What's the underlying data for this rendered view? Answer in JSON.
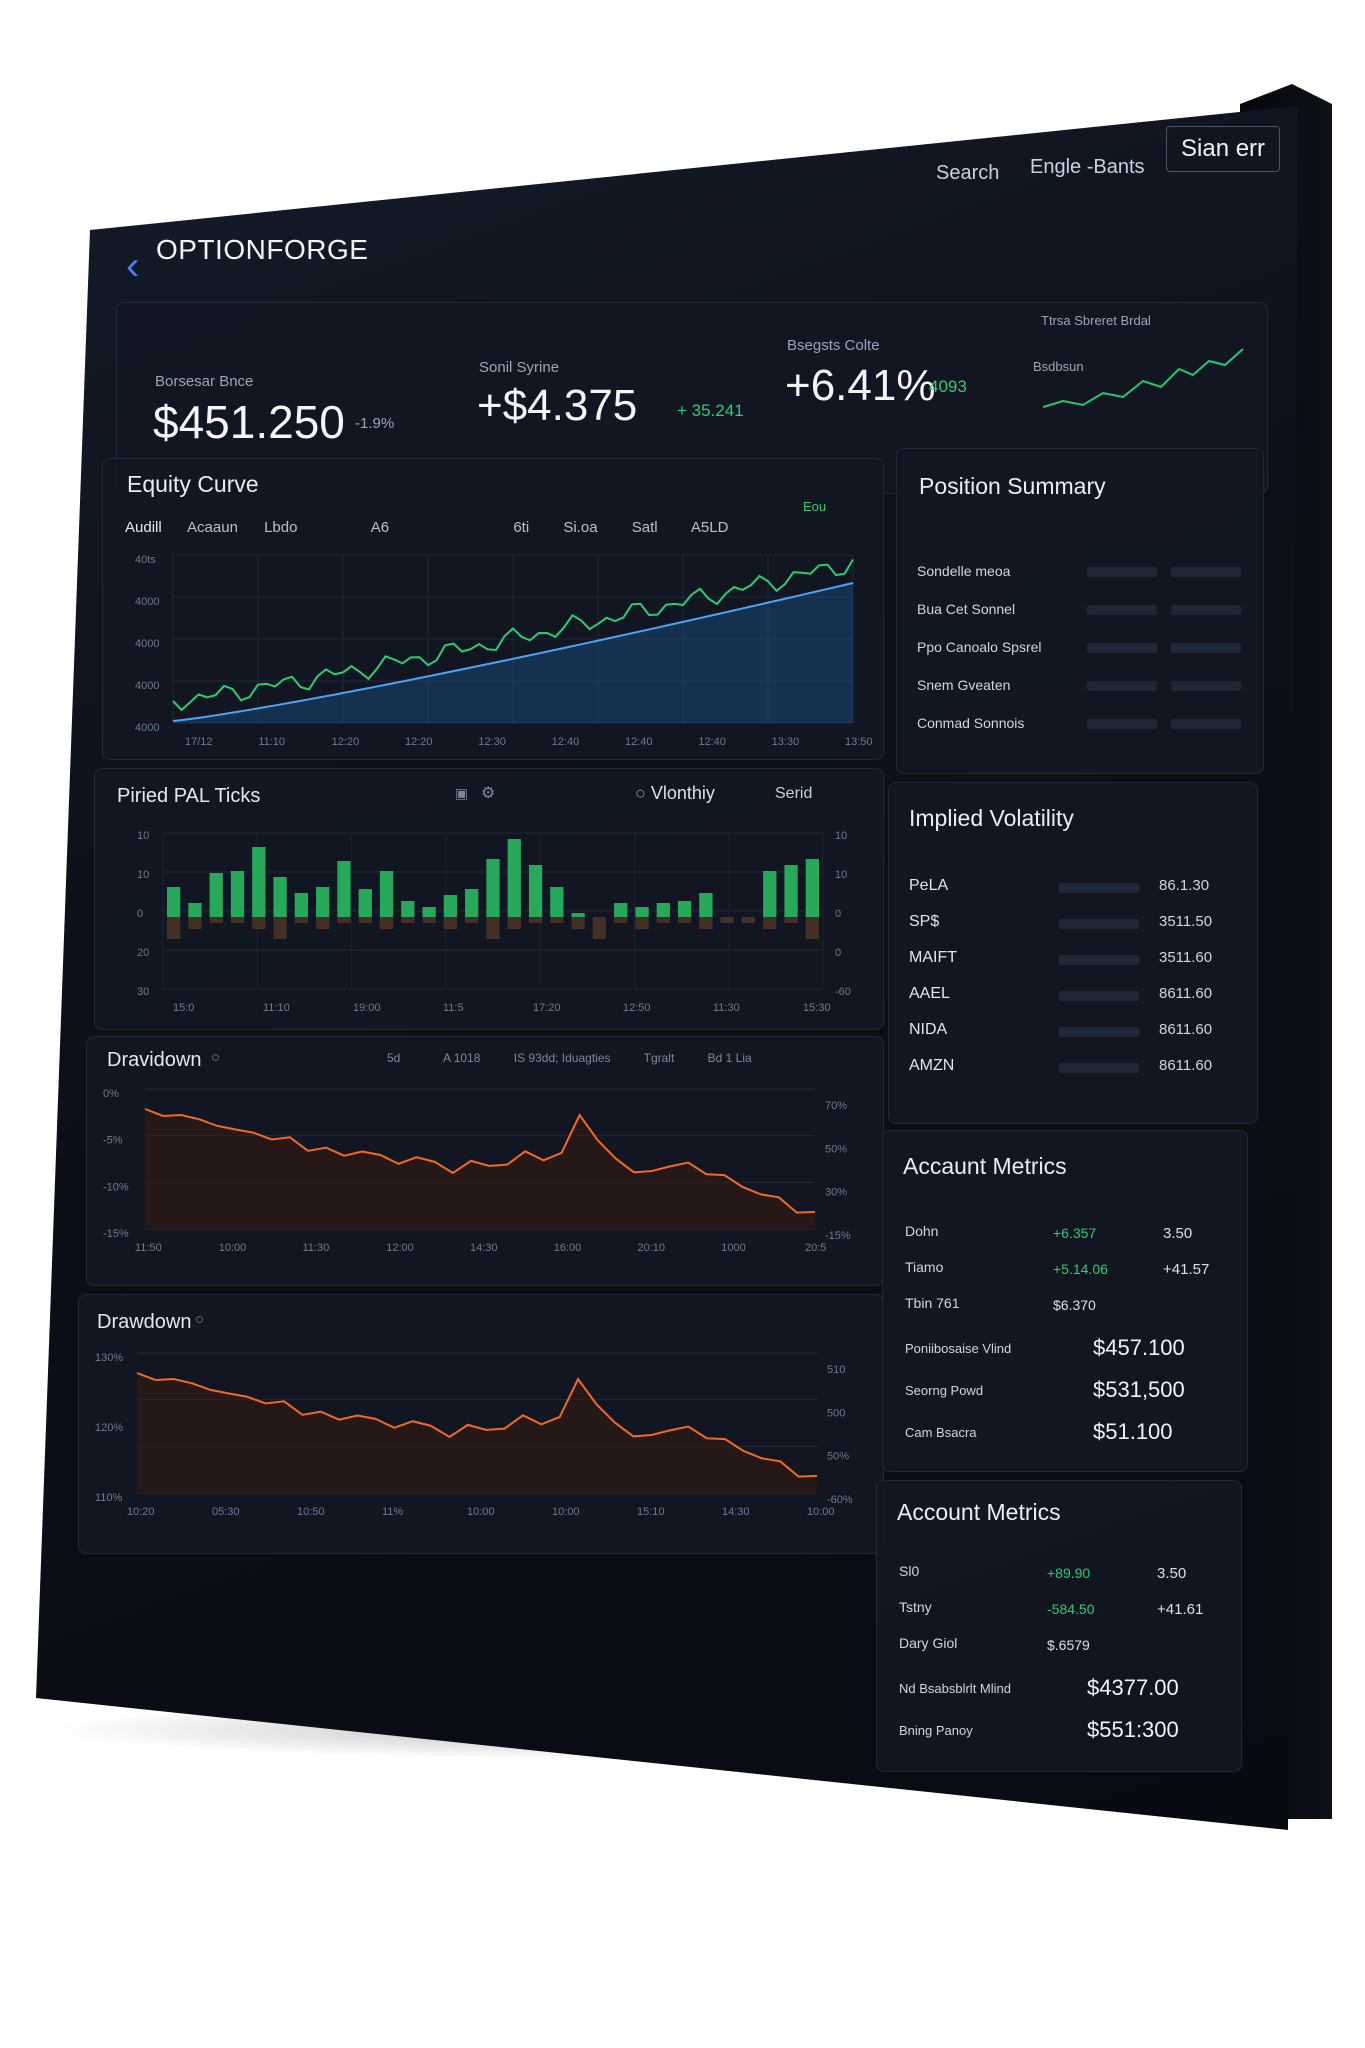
{
  "app": {
    "name": "OPTIONFORGE",
    "nav": {
      "search": "Search",
      "middle": "Engle -Bants",
      "signin": "Sian err"
    }
  },
  "stats": [
    {
      "label": "Borsesar Bnce",
      "value": "$451.250",
      "delta": "-1.9%"
    },
    {
      "label": "Sonil Syrine",
      "value": "+$4.375",
      "delta": "+ 35.241"
    },
    {
      "label": "Bsegsts Colte",
      "value": "+6.41%",
      "delta": "4093"
    },
    {
      "label": "Ttrsa Sbreret Brdal",
      "sub": "Bsdbsun"
    }
  ],
  "equity": {
    "title": "Equity Curve",
    "tabs": [
      "Audill",
      "Acaaun",
      "Lbdo",
      "A6",
      "6ti",
      "Si.oa",
      "Satl",
      "A5LD"
    ],
    "legend": "Eou",
    "y_ticks": [
      "40ts",
      "4000",
      "4000",
      "4000",
      "4000"
    ],
    "x_ticks": [
      "17/12",
      "11:10",
      "12:20",
      "12:20",
      "12:30",
      "12:40",
      "12:40",
      "12:40",
      "13:30",
      "13:50"
    ]
  },
  "pnl": {
    "title": "Piried PAL Ticks",
    "toggle": "Vlonthiy",
    "extra": "Serid",
    "y_left": [
      "10",
      "10",
      "0",
      "20",
      "30"
    ],
    "y_right": [
      "10",
      "10",
      "0",
      "0",
      "-60"
    ],
    "x_ticks": [
      "15:0",
      "11:10",
      "19:00",
      "11:5",
      "17:20",
      "12:50",
      "11:30",
      "15:30"
    ]
  },
  "drawdown1": {
    "title": "Dravidown",
    "header": [
      "5d",
      "A 1018",
      "IS 93dd; Iduagties",
      "Tgralt",
      "Bd 1 Lia"
    ],
    "y_left": [
      "0%",
      "-5%",
      "-10%",
      "-15%"
    ],
    "y_right": [
      "70%",
      "50%",
      "30%",
      "-15%"
    ],
    "x_ticks": [
      "11:50",
      "10:00",
      "11:30",
      "12:00",
      "14:30",
      "16:00",
      "20:10",
      "1000",
      "20:5"
    ]
  },
  "drawdown2": {
    "title": "Drawdown",
    "y_left": [
      "130%",
      "120%",
      "110%"
    ],
    "y_right": [
      "510",
      "500",
      "50%",
      "-60%"
    ],
    "x_ticks": [
      "10:20",
      "05:30",
      "10:50",
      "11%",
      "10:00",
      "10:00",
      "15:10",
      "14:30",
      "10:00"
    ]
  },
  "position_summary": {
    "title": "Position Summary",
    "rows": [
      "Sondelle meoa",
      "Bua Cet Sonnel",
      "Ppo Canoalo Spsrel",
      "Snem Gveaten",
      "Conmad Sonnois"
    ]
  },
  "implied_vol": {
    "title": "Implied Volatility",
    "rows": [
      {
        "ticker": "PeLA",
        "value": "86.1.30"
      },
      {
        "ticker": "SP$",
        "value": "3511.50"
      },
      {
        "ticker": "MAIFT",
        "value": "3511.60"
      },
      {
        "ticker": "AAEL",
        "value": "8611.60"
      },
      {
        "ticker": "NIDA",
        "value": "8611.60"
      },
      {
        "ticker": "AMZN",
        "value": "8611.60"
      }
    ]
  },
  "account1": {
    "title": "Accaunt Metrics",
    "rows": [
      {
        "label": "Dohn",
        "a": "+6.357",
        "b": "3.50"
      },
      {
        "label": "Tiamo",
        "a": "+5.14.06",
        "b": "+41.57"
      },
      {
        "label": "Tbin 761",
        "a": "$6.370",
        "b": ""
      }
    ],
    "big": [
      {
        "label": "Poniibosaise Vlind",
        "value": "$457.100"
      },
      {
        "label": "Seorng Powd",
        "value": "$531,500"
      },
      {
        "label": "Cam Bsacra",
        "value": "$51.100"
      }
    ]
  },
  "account2": {
    "title": "Account Metrics",
    "rows": [
      {
        "label": "Sl0",
        "a": "+89.90",
        "b": "3.50"
      },
      {
        "label": "Tstny",
        "a": "-584.50",
        "b": "+41.61"
      },
      {
        "label": "Dary Giol",
        "a": "$.6579",
        "b": ""
      }
    ],
    "big": [
      {
        "label": "Nd Bsabsblrlt Mlind",
        "value": "$4377.00"
      },
      {
        "label": "Bning Panoy",
        "value": "$551:300"
      }
    ]
  }
}
